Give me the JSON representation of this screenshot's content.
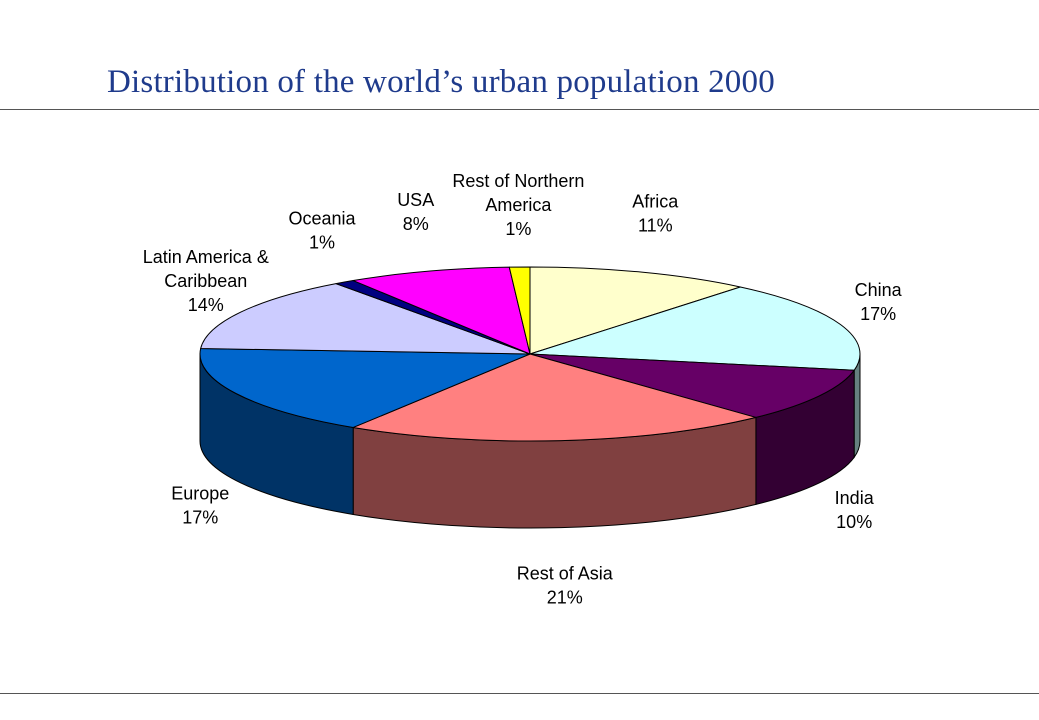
{
  "title": "Distribution of the world’s urban population 2000",
  "colors": {
    "title": "#1f3b8c",
    "rule": "#555555"
  },
  "chart_data": {
    "type": "pie",
    "title": "Distribution of the world’s urban population 2000",
    "style": "3d-exploded-none",
    "slices": [
      {
        "label": "Africa",
        "label_lines": [
          "Africa",
          "11%"
        ],
        "value": 11,
        "percent_label": "11%",
        "color": "#ffffcc"
      },
      {
        "label": "China",
        "label_lines": [
          "China",
          "17%"
        ],
        "value": 17,
        "percent_label": "17%",
        "color": "#ccffff"
      },
      {
        "label": "India",
        "label_lines": [
          "India",
          "10%"
        ],
        "value": 10,
        "percent_label": "10%",
        "color": "#660066"
      },
      {
        "label": "Rest of Asia",
        "label_lines": [
          "Rest of Asia",
          "21%"
        ],
        "value": 21,
        "percent_label": "21%",
        "color": "#ff8080"
      },
      {
        "label": "Europe",
        "label_lines": [
          "Europe",
          "17%"
        ],
        "value": 17,
        "percent_label": "17%",
        "color": "#0066cc"
      },
      {
        "label": "Latin America & Caribbean",
        "label_lines": [
          "Latin America &",
          "Caribbean",
          "14%"
        ],
        "value": 14,
        "percent_label": "14%",
        "color": "#ccccff"
      },
      {
        "label": "Oceania",
        "label_lines": [
          "Oceania",
          "1%"
        ],
        "value": 1,
        "percent_label": "1%",
        "color": "#000080"
      },
      {
        "label": "USA",
        "label_lines": [
          "USA",
          "8%"
        ],
        "value": 8,
        "percent_label": "8%",
        "color": "#ff00ff"
      },
      {
        "label": "Rest of Northern America",
        "label_lines": [
          "Rest of Northern",
          "America",
          "1%"
        ],
        "value": 1,
        "percent_label": "1%",
        "color": "#ffff00"
      }
    ]
  }
}
